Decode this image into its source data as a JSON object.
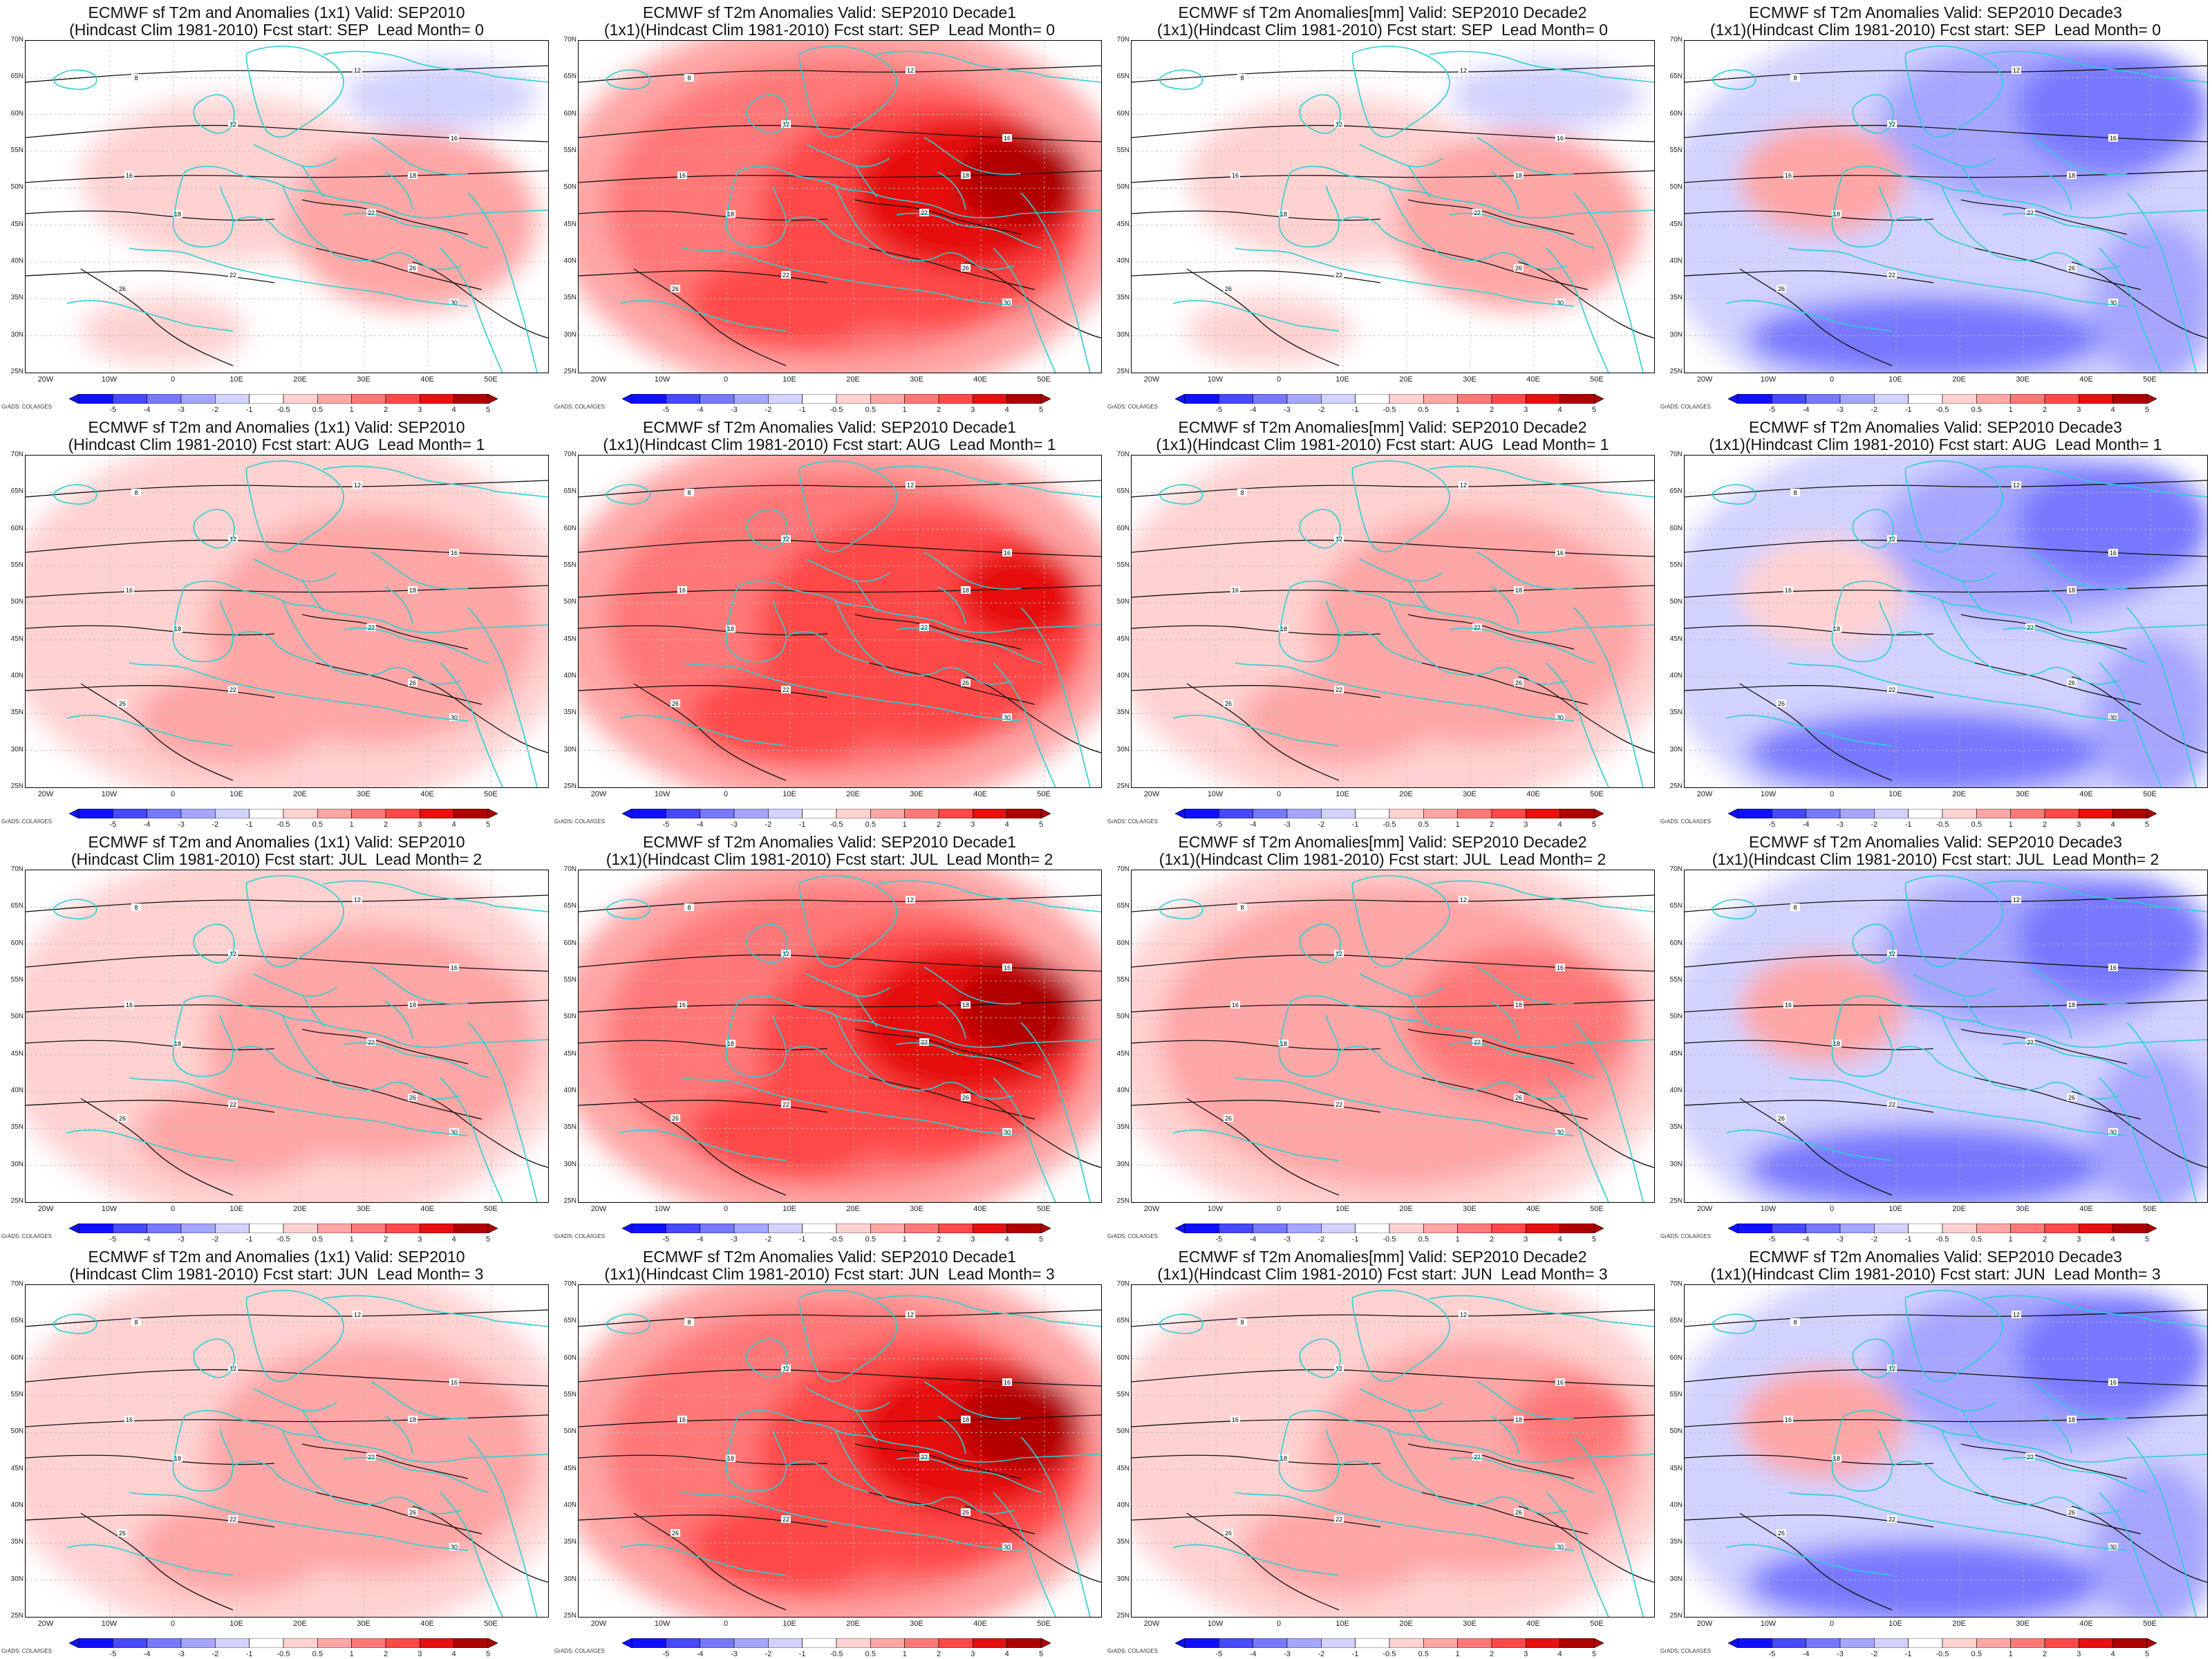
{
  "colors": {
    "neg": [
      "#1010ff",
      "#4848ff",
      "#7878ff",
      "#a6a6ff",
      "#d2d2ff"
    ],
    "neutral": "#ffffff",
    "pos": [
      "#ffd2d2",
      "#ffa6a6",
      "#ff7878",
      "#ff4848",
      "#e61010",
      "#b00000"
    ],
    "coast": "#2ad0d0",
    "contour": "#111111"
  },
  "axes": {
    "lat_labels": [
      "70N",
      "65N",
      "60N",
      "55N",
      "50N",
      "45N",
      "40N",
      "35N",
      "30N",
      "25N"
    ],
    "lon_labels": [
      "20W",
      "10W",
      "0",
      "10E",
      "20E",
      "30E",
      "40E",
      "50E"
    ]
  },
  "colorbar": {
    "labels": [
      "-5",
      "-4",
      "-3",
      "-2",
      "-1",
      "-0.5",
      "0.5",
      "1",
      "2",
      "3",
      "4",
      "5"
    ]
  },
  "credit": "GrADS: COLA/IGES",
  "panels": [
    {
      "title1": "ECMWF sf T2m and Anomalies (1x1) Valid: SEP2010",
      "title2": "(Hindcast Clim 1981-2010) Fcst start: SEP  Lead Month= 0",
      "theme": "mixedE",
      "intensity": 0.6
    },
    {
      "title1": "ECMWF sf T2m Anomalies Valid: SEP2010 Decade1",
      "title2": "(1x1)(Hindcast Clim 1981-2010) Fcst start: SEP  Lead Month= 0",
      "theme": "warm",
      "intensity": 1.0
    },
    {
      "title1": "ECMWF sf T2m Anomalies[mm] Valid: SEP2010 Decade2",
      "title2": "(1x1)(Hindcast Clim 1981-2010) Fcst start: SEP  Lead Month= 0",
      "theme": "mixedE",
      "intensity": 0.5
    },
    {
      "title1": "ECMWF sf T2m Anomalies Valid: SEP2010 Decade3",
      "title2": "(1x1)(Hindcast Clim 1981-2010) Fcst start: SEP  Lead Month= 0",
      "theme": "cold",
      "intensity": 0.8
    },
    {
      "title1": "ECMWF sf T2m and Anomalies (1x1) Valid: SEP2010",
      "title2": "(Hindcast Clim 1981-2010) Fcst start: AUG  Lead Month= 1",
      "theme": "warm",
      "intensity": 0.35
    },
    {
      "title1": "ECMWF sf T2m Anomalies Valid: SEP2010 Decade1",
      "title2": "(1x1)(Hindcast Clim 1981-2010) Fcst start: AUG  Lead Month= 1",
      "theme": "warm",
      "intensity": 0.8
    },
    {
      "title1": "ECMWF sf T2m Anomalies[mm] Valid: SEP2010 Decade2",
      "title2": "(1x1)(Hindcast Clim 1981-2010) Fcst start: AUG  Lead Month= 1",
      "theme": "warm",
      "intensity": 0.3
    },
    {
      "title1": "ECMWF sf T2m Anomalies Valid: SEP2010 Decade3",
      "title2": "(1x1)(Hindcast Clim 1981-2010) Fcst start: AUG  Lead Month= 1",
      "theme": "cold",
      "intensity": 0.55
    },
    {
      "title1": "ECMWF sf T2m and Anomalies (1x1) Valid: SEP2010",
      "title2": "(Hindcast Clim 1981-2010) Fcst start: JUL  Lead Month= 2",
      "theme": "warm",
      "intensity": 0.35
    },
    {
      "title1": "ECMWF sf T2m Anomalies Valid: SEP2010 Decade1",
      "title2": "(1x1)(Hindcast Clim 1981-2010) Fcst start: JUL  Lead Month= 2",
      "theme": "warm",
      "intensity": 0.9
    },
    {
      "title1": "ECMWF sf T2m Anomalies[mm] Valid: SEP2010 Decade2",
      "title2": "(1x1)(Hindcast Clim 1981-2010) Fcst start: JUL  Lead Month= 2",
      "theme": "warm",
      "intensity": 0.5
    },
    {
      "title1": "ECMWF sf T2m Anomalies Valid: SEP2010 Decade3",
      "title2": "(1x1)(Hindcast Clim 1981-2010) Fcst start: JUL  Lead Month= 2",
      "theme": "cold",
      "intensity": 0.75
    },
    {
      "title1": "ECMWF sf T2m and Anomalies (1x1) Valid: SEP2010",
      "title2": "(Hindcast Clim 1981-2010) Fcst start: JUN  Lead Month= 3",
      "theme": "warm",
      "intensity": 0.3
    },
    {
      "title1": "ECMWF sf T2m Anomalies Valid: SEP2010 Decade1",
      "title2": "(1x1)(Hindcast Clim 1981-2010) Fcst start: JUN  Lead Month= 3",
      "theme": "warm",
      "intensity": 0.95
    },
    {
      "title1": "ECMWF sf T2m Anomalies[mm] Valid: SEP2010 Decade2",
      "title2": "(1x1)(Hindcast Clim 1981-2010) Fcst start: JUN  Lead Month= 3",
      "theme": "warm",
      "intensity": 0.4
    },
    {
      "title1": "ECMWF sf T2m Anomalies Valid: SEP2010 Decade3",
      "title2": "(1x1)(Hindcast Clim 1981-2010) Fcst start: JUN  Lead Month= 3",
      "theme": "cold",
      "intensity": 0.8
    }
  ]
}
